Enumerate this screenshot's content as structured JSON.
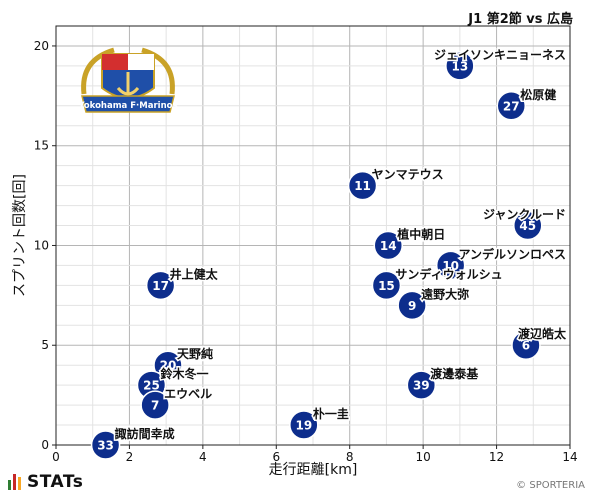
{
  "header": {
    "title": "J1 第2節 vs 広島"
  },
  "footer": {
    "brand": "STATs",
    "credit": "© SPORTERIA",
    "brand_colors": [
      "#2e7d32",
      "#c62828",
      "#f9a825"
    ]
  },
  "logo": {
    "text": "Yokohama F·Marinos",
    "icon": "yokohama-f-marinos-crest"
  },
  "colors": {
    "marker": "#0d2d8c",
    "marker_text": "#ffffff",
    "grid": "#cccccc"
  },
  "chart_data": {
    "type": "scatter",
    "title": "",
    "xlabel": "走行距離[km]",
    "ylabel": "スプリント回数[回]",
    "xlim": [
      0,
      14
    ],
    "ylim": [
      0,
      21
    ],
    "xticks": [
      0,
      2,
      4,
      6,
      8,
      10,
      12,
      14
    ],
    "yticks": [
      0,
      5,
      10,
      15,
      20
    ],
    "grid": true,
    "points": [
      {
        "number": "13",
        "name": "ジェイソンキニョーネス",
        "x": 11.0,
        "y": 19
      },
      {
        "number": "27",
        "name": "松原健",
        "x": 12.4,
        "y": 17
      },
      {
        "number": "11",
        "name": "ヤンマテウス",
        "x": 8.35,
        "y": 13
      },
      {
        "number": "45",
        "name": "ジャンクルード",
        "x": 12.85,
        "y": 11
      },
      {
        "number": "14",
        "name": "植中朝日",
        "x": 9.05,
        "y": 10
      },
      {
        "number": "10",
        "name": "アンデルソンロペス",
        "x": 10.75,
        "y": 9
      },
      {
        "number": "15",
        "name": "サンディウォルシュ",
        "x": 9.0,
        "y": 8
      },
      {
        "number": "17",
        "name": "井上健太",
        "x": 2.85,
        "y": 8
      },
      {
        "number": "9",
        "name": "遠野大弥",
        "x": 9.7,
        "y": 7
      },
      {
        "number": "6",
        "name": "渡辺皓太",
        "x": 12.8,
        "y": 5
      },
      {
        "number": "39",
        "name": "渡邊泰基",
        "x": 9.95,
        "y": 3
      },
      {
        "number": "20",
        "name": "天野純",
        "x": 3.05,
        "y": 4
      },
      {
        "number": "25",
        "name": "鈴木冬一",
        "x": 2.6,
        "y": 3
      },
      {
        "number": "7",
        "name": "エウベル",
        "x": 2.7,
        "y": 2
      },
      {
        "number": "19",
        "name": "朴一圭",
        "x": 6.75,
        "y": 1
      },
      {
        "number": "33",
        "name": "諏訪間幸成",
        "x": 1.35,
        "y": 0
      }
    ]
  }
}
